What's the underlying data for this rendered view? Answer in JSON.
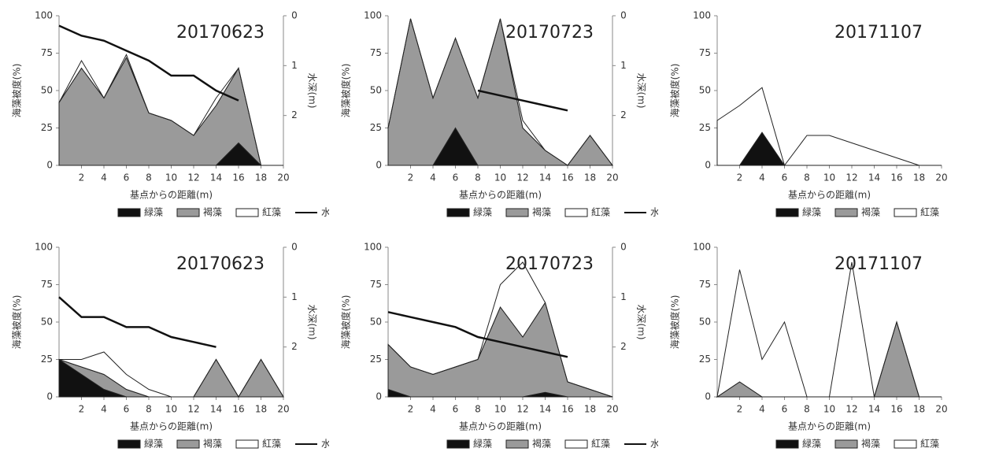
{
  "chart_data": [
    {
      "type": "area",
      "title": "20170623",
      "x_label": "基点からの距離(m)",
      "y_label": "海藻被度(%)",
      "y2_label": "水深(m)",
      "x": [
        0,
        2,
        4,
        6,
        8,
        10,
        12,
        14,
        16,
        18,
        20
      ],
      "xlim": [
        0,
        20
      ],
      "xticks": [
        2,
        4,
        6,
        8,
        10,
        12,
        14,
        16,
        18,
        20
      ],
      "ylim": [
        0,
        100
      ],
      "yticks": [
        0,
        25,
        50,
        75,
        100
      ],
      "y2lim": [
        0,
        3
      ],
      "y2ticks": [
        0,
        1,
        2
      ],
      "y2_inverted": true,
      "stacked": true,
      "series": [
        {
          "name": "緑藻",
          "color": "#111111",
          "values": [
            0,
            0,
            0,
            0,
            0,
            0,
            0,
            0,
            15,
            0,
            0
          ]
        },
        {
          "name": "褐藻",
          "color": "#9a9a9a",
          "values": [
            42,
            65,
            45,
            72,
            35,
            30,
            20,
            40,
            50,
            0,
            0
          ]
        },
        {
          "name": "紅藻",
          "color": "#ffffff",
          "values": [
            0,
            5,
            0,
            2,
            0,
            0,
            0,
            5,
            0,
            0,
            0
          ]
        },
        {
          "name": "水深",
          "color": "#111111",
          "axis": "y2",
          "values": [
            0.2,
            0.4,
            0.5,
            0.7,
            0.9,
            1.2,
            1.2,
            1.5,
            1.7,
            null,
            null
          ]
        }
      ]
    },
    {
      "type": "area",
      "title": "20170723",
      "x_label": "基点からの距離(m)",
      "y_label": "海藻被度(%)",
      "y2_label": "水深(m)",
      "x": [
        0,
        2,
        4,
        6,
        8,
        10,
        12,
        14,
        16,
        18,
        20
      ],
      "xlim": [
        0,
        20
      ],
      "xticks": [
        2,
        4,
        6,
        8,
        10,
        12,
        14,
        16,
        18,
        20
      ],
      "ylim": [
        0,
        100
      ],
      "yticks": [
        0,
        25,
        50,
        75,
        100
      ],
      "y2lim": [
        0,
        3
      ],
      "y2ticks": [
        0,
        1,
        2
      ],
      "y2_inverted": true,
      "stacked": true,
      "series": [
        {
          "name": "緑藻",
          "color": "#111111",
          "values": [
            0,
            0,
            0,
            25,
            0,
            0,
            0,
            0,
            0,
            0,
            0
          ]
        },
        {
          "name": "褐藻",
          "color": "#9a9a9a",
          "values": [
            25,
            98,
            45,
            60,
            45,
            98,
            25,
            10,
            0,
            20,
            0
          ]
        },
        {
          "name": "紅藻",
          "color": "#ffffff",
          "values": [
            0,
            0,
            0,
            0,
            0,
            0,
            5,
            0,
            0,
            0,
            0
          ]
        },
        {
          "name": "水深",
          "color": "#111111",
          "axis": "y2",
          "values": [
            null,
            null,
            null,
            null,
            1.5,
            1.6,
            1.7,
            1.8,
            1.9,
            null,
            null
          ]
        }
      ]
    },
    {
      "type": "area",
      "title": "20171107",
      "x_label": "基点からの距離(m)",
      "y_label": "海藻被度(%)",
      "x": [
        0,
        2,
        4,
        6,
        8,
        10,
        12,
        14,
        16,
        18,
        20
      ],
      "xlim": [
        0,
        20
      ],
      "xticks": [
        2,
        4,
        6,
        8,
        10,
        12,
        14,
        16,
        18,
        20
      ],
      "ylim": [
        0,
        100
      ],
      "yticks": [
        0,
        25,
        50,
        75,
        100
      ],
      "stacked": true,
      "series": [
        {
          "name": "緑藻",
          "color": "#111111",
          "values": [
            0,
            0,
            22,
            0,
            0,
            0,
            0,
            0,
            0,
            0,
            0
          ]
        },
        {
          "name": "褐藻",
          "color": "#9a9a9a",
          "values": [
            0,
            0,
            0,
            0,
            0,
            0,
            0,
            0,
            0,
            0,
            0
          ]
        },
        {
          "name": "紅藻",
          "color": "#ffffff",
          "values": [
            30,
            40,
            30,
            0,
            20,
            20,
            15,
            10,
            5,
            0,
            0
          ]
        }
      ]
    },
    {
      "type": "area",
      "title": "20170623",
      "x_label": "基点からの距離(m)",
      "y_label": "海藻被度(%)",
      "y2_label": "水深(m)",
      "x": [
        0,
        2,
        4,
        6,
        8,
        10,
        12,
        14,
        16,
        18,
        20
      ],
      "xlim": [
        0,
        20
      ],
      "xticks": [
        2,
        4,
        6,
        8,
        10,
        12,
        14,
        16,
        18,
        20
      ],
      "ylim": [
        0,
        100
      ],
      "yticks": [
        0,
        25,
        50,
        75,
        100
      ],
      "y2lim": [
        0,
        3
      ],
      "y2ticks": [
        0,
        1,
        2
      ],
      "y2_inverted": true,
      "stacked": true,
      "series": [
        {
          "name": "緑藻",
          "color": "#111111",
          "values": [
            25,
            15,
            5,
            0,
            0,
            0,
            0,
            0,
            0,
            0,
            0
          ]
        },
        {
          "name": "褐藻",
          "color": "#9a9a9a",
          "values": [
            0,
            5,
            10,
            5,
            0,
            0,
            0,
            25,
            0,
            25,
            0
          ]
        },
        {
          "name": "紅藻",
          "color": "#ffffff",
          "values": [
            0,
            5,
            15,
            10,
            5,
            0,
            0,
            0,
            0,
            0,
            0
          ]
        },
        {
          "name": "水深",
          "color": "#111111",
          "axis": "y2",
          "values": [
            1.0,
            1.4,
            1.4,
            1.6,
            1.6,
            1.8,
            1.9,
            2.0,
            null,
            null,
            null
          ]
        }
      ]
    },
    {
      "type": "area",
      "title": "20170723",
      "x_label": "基点からの距離(m)",
      "y_label": "海藻被度(%)",
      "y2_label": "水深(m)",
      "x": [
        0,
        2,
        4,
        6,
        8,
        10,
        12,
        14,
        16,
        18,
        20
      ],
      "xlim": [
        0,
        20
      ],
      "xticks": [
        2,
        4,
        6,
        8,
        10,
        12,
        14,
        16,
        18,
        20
      ],
      "ylim": [
        0,
        100
      ],
      "yticks": [
        0,
        25,
        50,
        75,
        100
      ],
      "y2lim": [
        0,
        3
      ],
      "y2ticks": [
        0,
        1,
        2
      ],
      "y2_inverted": true,
      "stacked": true,
      "series": [
        {
          "name": "緑藻",
          "color": "#111111",
          "values": [
            5,
            0,
            0,
            0,
            0,
            0,
            0,
            3,
            0,
            0,
            0
          ]
        },
        {
          "name": "褐藻",
          "color": "#9a9a9a",
          "values": [
            30,
            20,
            15,
            20,
            25,
            60,
            40,
            60,
            10,
            5,
            0
          ]
        },
        {
          "name": "紅藻",
          "color": "#ffffff",
          "values": [
            0,
            0,
            0,
            0,
            0,
            15,
            50,
            0,
            0,
            0,
            0
          ]
        },
        {
          "name": "水深",
          "color": "#111111",
          "axis": "y2",
          "values": [
            1.3,
            1.4,
            1.5,
            1.6,
            1.8,
            1.9,
            2.0,
            2.1,
            2.2,
            null,
            null
          ]
        }
      ]
    },
    {
      "type": "area",
      "title": "20171107",
      "x_label": "基点からの距離(m)",
      "y_label": "海藻被度(%)",
      "x": [
        0,
        2,
        4,
        6,
        8,
        10,
        12,
        14,
        16,
        18,
        20
      ],
      "xlim": [
        0,
        20
      ],
      "xticks": [
        2,
        4,
        6,
        8,
        10,
        12,
        14,
        16,
        18,
        20
      ],
      "ylim": [
        0,
        100
      ],
      "yticks": [
        0,
        25,
        50,
        75,
        100
      ],
      "stacked": true,
      "series": [
        {
          "name": "緑藻",
          "color": "#111111",
          "values": [
            0,
            0,
            0,
            0,
            0,
            0,
            0,
            0,
            0,
            0,
            0
          ]
        },
        {
          "name": "褐藻",
          "color": "#9a9a9a",
          "values": [
            0,
            10,
            0,
            0,
            0,
            0,
            0,
            0,
            50,
            0,
            0
          ]
        },
        {
          "name": "紅藻",
          "color": "#ffffff",
          "values": [
            0,
            75,
            25,
            50,
            0,
            0,
            90,
            0,
            0,
            0,
            0
          ]
        }
      ]
    }
  ]
}
